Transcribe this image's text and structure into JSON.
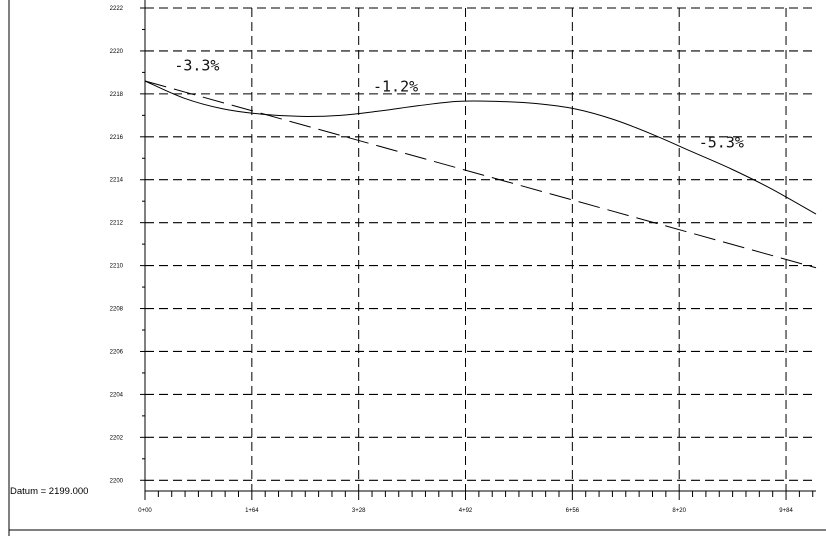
{
  "chart_data": {
    "type": "line",
    "title": "",
    "xlabel": "",
    "ylabel": "",
    "datum_label": "Datum = 2199.000",
    "xlim": [
      0,
      1030
    ],
    "ylim": [
      2199.5,
      2222
    ],
    "y_ticks": [
      2200,
      2202,
      2204,
      2206,
      2208,
      2210,
      2212,
      2214,
      2216,
      2218,
      2220,
      2222
    ],
    "x_ticks": [
      {
        "value": 0,
        "label": "0+00"
      },
      {
        "value": 164,
        "label": "1+64"
      },
      {
        "value": 328,
        "label": "3+28"
      },
      {
        "value": 492,
        "label": "4+92"
      },
      {
        "value": 656,
        "label": "6+56"
      },
      {
        "value": 820,
        "label": "8+20"
      },
      {
        "value": 984,
        "label": "9+84"
      }
    ],
    "grid": true,
    "series": [
      {
        "style": "solid",
        "x": [
          0,
          60,
          120,
          180,
          240,
          300,
          360,
          420,
          480,
          540,
          600,
          660,
          720,
          780,
          840,
          900,
          960,
          1030
        ],
        "y": [
          2218.6,
          2217.8,
          2217.3,
          2217.05,
          2216.95,
          2217.0,
          2217.2,
          2217.45,
          2217.65,
          2217.65,
          2217.55,
          2217.3,
          2216.8,
          2216.1,
          2215.3,
          2214.5,
          2213.6,
          2212.4
        ]
      },
      {
        "style": "dashed",
        "x": [
          0,
          1030
        ],
        "y": [
          2218.6,
          2209.9
        ]
      }
    ],
    "annotations": [
      {
        "text": "-3.3%",
        "x": 45,
        "y": 2219.1
      },
      {
        "text": "-1.2%",
        "x": 350,
        "y": 2218.1
      },
      {
        "text": "-5.3%",
        "x": 850,
        "y": 2215.5
      }
    ]
  }
}
